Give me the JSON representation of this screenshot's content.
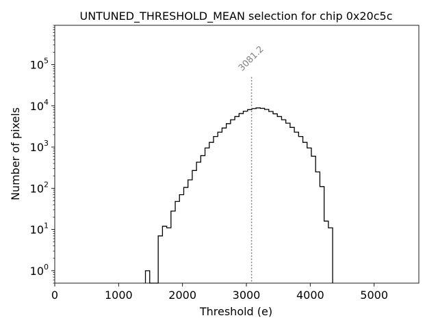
{
  "chart_data": {
    "type": "histogram",
    "title": "UNTUNED_THRESHOLD_MEAN selection for chip 0x20c5c",
    "xlabel": "Threshold (e)",
    "ylabel": "Number of pixels",
    "xlim": [
      0,
      5700
    ],
    "ylim": [
      0.5,
      900000
    ],
    "yscale": "log",
    "xticks": [
      0,
      1000,
      2000,
      3000,
      4000,
      5000
    ],
    "xtick_labels": [
      "0",
      "1000",
      "2000",
      "3000",
      "4000",
      "5000"
    ],
    "yticks": [
      1,
      10,
      100,
      1000,
      10000,
      100000
    ],
    "ytick_labels": [
      {
        "base": "10",
        "exp": "0"
      },
      {
        "base": "10",
        "exp": "1"
      },
      {
        "base": "10",
        "exp": "2"
      },
      {
        "base": "10",
        "exp": "3"
      },
      {
        "base": "10",
        "exp": "4"
      },
      {
        "base": "10",
        "exp": "5"
      }
    ],
    "bin_start": 1420,
    "bin_width": 66.6,
    "counts": [
      1,
      0,
      0,
      7,
      12,
      11,
      28,
      48,
      70,
      105,
      160,
      270,
      430,
      620,
      950,
      1300,
      1800,
      2300,
      2900,
      3700,
      4600,
      5500,
      6500,
      7400,
      8100,
      8600,
      8900,
      8700,
      8200,
      7300,
      6400,
      5500,
      4600,
      3800,
      3000,
      2300,
      1800,
      1300,
      950,
      600,
      250,
      110,
      16,
      11
    ],
    "mean_line": {
      "x": 3081.2,
      "label": "3081.2",
      "y_top": 50000
    },
    "grid": false,
    "colors": {
      "line": "#000000",
      "mean_line": "#808080",
      "annotation": "#808080"
    }
  }
}
